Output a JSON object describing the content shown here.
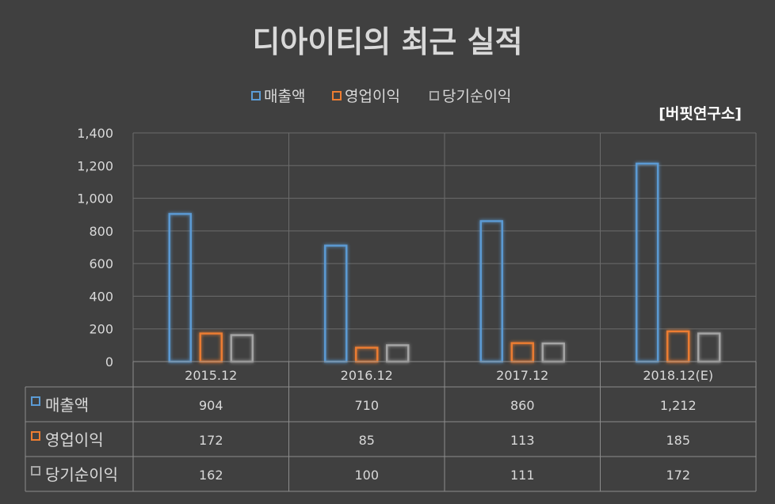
{
  "chart_data": {
    "type": "bar",
    "title": "디아이티의 최근 실적",
    "source_label": "[버핏연구소]",
    "categories": [
      "2015.12",
      "2016.12",
      "2017.12",
      "2018.12(E)"
    ],
    "series": [
      {
        "name": "매출액",
        "values": [
          904,
          710,
          860,
          1212
        ],
        "color": "#5b9bd5"
      },
      {
        "name": "영업이익",
        "values": [
          172,
          85,
          113,
          185
        ],
        "color": "#ed7d31"
      },
      {
        "name": "당기순이익",
        "values": [
          162,
          100,
          111,
          172
        ],
        "color": "#a5a5a5"
      }
    ],
    "table_values": [
      [
        "904",
        "710",
        "860",
        "1,212"
      ],
      [
        "172",
        "85",
        "113",
        "185"
      ],
      [
        "162",
        "100",
        "111",
        "172"
      ]
    ],
    "y_ticks": [
      "0",
      "200",
      "400",
      "600",
      "800",
      "1,000",
      "1,200",
      "1,400"
    ],
    "ylim": [
      0,
      1400
    ],
    "legend_position": "top",
    "grid": true,
    "data_table": true
  }
}
